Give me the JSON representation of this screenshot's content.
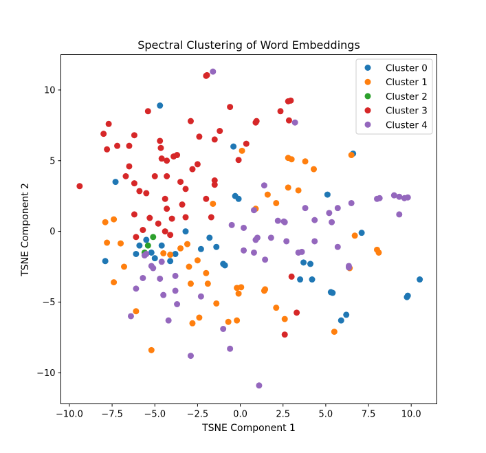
{
  "chart_data": {
    "type": "scatter",
    "title": "Spectral Clustering of Word Embeddings",
    "xlabel": "TSNE Component 1",
    "ylabel": "TSNE Component 2",
    "xlim": [
      -10.5,
      11.5
    ],
    "ylim": [
      -12.2,
      12.5
    ],
    "xticks": [
      -10.0,
      -7.5,
      -5.0,
      -2.5,
      0.0,
      2.5,
      5.0,
      7.5,
      10.0
    ],
    "xtick_labels": [
      "−10.0",
      "−7.5",
      "−5.0",
      "−2.5",
      "0.0",
      "2.5",
      "5.0",
      "7.5",
      "10.0"
    ],
    "yticks": [
      -10,
      -5,
      0,
      5,
      10
    ],
    "ytick_labels": [
      "−10",
      "−5",
      "0",
      "5",
      "10"
    ],
    "grid": false,
    "legend_position": "top-right",
    "series": [
      {
        "name": "Cluster 0",
        "color": "#1f77b4",
        "points": [
          [
            -4.7,
            8.9
          ],
          [
            -7.3,
            3.5
          ],
          [
            -0.4,
            6.0
          ],
          [
            -0.3,
            2.5
          ],
          [
            -0.1,
            2.3
          ],
          [
            6.6,
            5.5
          ],
          [
            5.1,
            2.6
          ],
          [
            7.1,
            -0.1
          ],
          [
            -3.2,
            0.0
          ],
          [
            -1.8,
            -0.45
          ],
          [
            -2.3,
            -1.25
          ],
          [
            -1.4,
            -1.1
          ],
          [
            -5.9,
            -1.0
          ],
          [
            -5.5,
            -0.6
          ],
          [
            -4.6,
            -1.0
          ],
          [
            -6.1,
            -1.6
          ],
          [
            -5.2,
            -1.5
          ],
          [
            -3.8,
            -1.6
          ],
          [
            -5.0,
            -1.9
          ],
          [
            -4.1,
            -2.1
          ],
          [
            -1.0,
            -2.3
          ],
          [
            -0.9,
            -2.4
          ],
          [
            -7.9,
            -2.1
          ],
          [
            3.7,
            -2.2
          ],
          [
            4.1,
            -2.3
          ],
          [
            3.5,
            -3.4
          ],
          [
            4.2,
            -3.4
          ],
          [
            5.3,
            -4.3
          ],
          [
            5.4,
            -4.35
          ],
          [
            9.8,
            -4.55
          ],
          [
            9.75,
            -4.65
          ],
          [
            10.5,
            -3.4
          ],
          [
            6.2,
            -5.9
          ],
          [
            5.9,
            -6.3
          ]
        ]
      },
      {
        "name": "Cluster 1",
        "color": "#ff7f0e",
        "points": [
          [
            -7.9,
            0.65
          ],
          [
            -7.4,
            0.85
          ],
          [
            -7.8,
            -0.8
          ],
          [
            -7.0,
            -0.85
          ],
          [
            -6.8,
            -2.5
          ],
          [
            -7.4,
            -3.6
          ],
          [
            -6.1,
            -5.65
          ],
          [
            -5.2,
            -8.4
          ],
          [
            -4.5,
            -1.55
          ],
          [
            -4.1,
            -1.65
          ],
          [
            -3.5,
            -1.2
          ],
          [
            -3.1,
            -0.9
          ],
          [
            -3.0,
            -2.5
          ],
          [
            -2.9,
            -3.7
          ],
          [
            -2.5,
            -2.05
          ],
          [
            -2.0,
            -2.95
          ],
          [
            -1.9,
            -3.7
          ],
          [
            -1.4,
            -5.1
          ],
          [
            -2.4,
            -6.1
          ],
          [
            -2.8,
            -6.5
          ],
          [
            -1.6,
            1.95
          ],
          [
            0.1,
            5.7
          ],
          [
            0.9,
            1.6
          ],
          [
            1.6,
            2.6
          ],
          [
            2.1,
            2.0
          ],
          [
            2.8,
            3.1
          ],
          [
            2.8,
            5.2
          ],
          [
            3.0,
            5.1
          ],
          [
            3.8,
            4.95
          ],
          [
            4.3,
            4.4
          ],
          [
            3.4,
            2.9
          ],
          [
            6.5,
            5.4
          ],
          [
            6.7,
            -0.3
          ],
          [
            6.4,
            -2.6
          ],
          [
            8.0,
            -1.3
          ],
          [
            8.1,
            -1.5
          ],
          [
            5.5,
            -7.1
          ],
          [
            -0.2,
            -4.0
          ],
          [
            0.05,
            -3.95
          ],
          [
            -0.1,
            -4.4
          ],
          [
            1.4,
            -4.2
          ],
          [
            1.45,
            -4.1
          ],
          [
            2.1,
            -5.4
          ],
          [
            2.6,
            -6.2
          ],
          [
            -0.7,
            -6.4
          ],
          [
            -0.2,
            -6.3
          ]
        ]
      },
      {
        "name": "Cluster 2",
        "color": "#2ca02c",
        "points": [
          [
            -5.1,
            -0.4
          ],
          [
            -5.4,
            -1.0
          ],
          [
            -5.6,
            -1.5
          ]
        ]
      },
      {
        "name": "Cluster 3",
        "color": "#d62728",
        "points": [
          [
            -9.4,
            3.2
          ],
          [
            -8.0,
            6.9
          ],
          [
            -7.7,
            7.6
          ],
          [
            -7.8,
            5.8
          ],
          [
            -7.2,
            6.05
          ],
          [
            -6.5,
            6.05
          ],
          [
            -6.2,
            6.8
          ],
          [
            -6.7,
            3.9
          ],
          [
            -6.5,
            4.6
          ],
          [
            -6.2,
            3.4
          ],
          [
            -5.9,
            2.85
          ],
          [
            -5.5,
            2.7
          ],
          [
            -5.4,
            8.5
          ],
          [
            -5.0,
            3.9
          ],
          [
            -4.7,
            6.4
          ],
          [
            -4.65,
            5.9
          ],
          [
            -4.6,
            5.15
          ],
          [
            -4.3,
            5.0
          ],
          [
            -3.9,
            5.3
          ],
          [
            -3.7,
            5.4
          ],
          [
            -3.5,
            3.5
          ],
          [
            -3.2,
            3.0
          ],
          [
            -4.3,
            3.9
          ],
          [
            -4.4,
            2.3
          ],
          [
            -4.3,
            1.6
          ],
          [
            -4.0,
            0.9
          ],
          [
            -3.4,
            1.9
          ],
          [
            -3.2,
            1.0
          ],
          [
            -2.9,
            7.8
          ],
          [
            -2.8,
            4.4
          ],
          [
            -2.5,
            4.75
          ],
          [
            -2.4,
            6.7
          ],
          [
            -2.0,
            2.3
          ],
          [
            -2.0,
            11.0
          ],
          [
            -1.95,
            11.05
          ],
          [
            -1.5,
            6.5
          ],
          [
            -1.2,
            7.1
          ],
          [
            -1.5,
            3.6
          ],
          [
            -1.5,
            3.3
          ],
          [
            -1.7,
            1.0
          ],
          [
            -0.6,
            8.8
          ],
          [
            -0.1,
            5.05
          ],
          [
            0.35,
            6.2
          ],
          [
            0.9,
            7.7
          ],
          [
            0.95,
            7.8
          ],
          [
            2.35,
            8.5
          ],
          [
            2.8,
            9.2
          ],
          [
            2.95,
            9.25
          ],
          [
            2.85,
            7.85
          ],
          [
            -6.2,
            1.2
          ],
          [
            -6.1,
            -0.4
          ],
          [
            -5.7,
            0.1
          ],
          [
            -5.3,
            0.95
          ],
          [
            -4.8,
            0.55
          ],
          [
            -4.4,
            0.0
          ],
          [
            -4.1,
            -0.25
          ],
          [
            3.0,
            -3.2
          ],
          [
            3.3,
            -5.75
          ],
          [
            2.6,
            -7.3
          ]
        ]
      },
      {
        "name": "Cluster 4",
        "color": "#9467bd",
        "points": [
          [
            -1.6,
            11.3
          ],
          [
            3.2,
            7.7
          ],
          [
            1.4,
            3.25
          ],
          [
            -0.5,
            0.45
          ],
          [
            0.2,
            0.25
          ],
          [
            0.8,
            1.5
          ],
          [
            0.9,
            -0.6
          ],
          [
            1.0,
            -0.45
          ],
          [
            1.8,
            -0.45
          ],
          [
            2.2,
            0.75
          ],
          [
            2.55,
            0.7
          ],
          [
            2.6,
            0.65
          ],
          [
            0.8,
            -1.5
          ],
          [
            1.45,
            -2.0
          ],
          [
            0.2,
            -1.35
          ],
          [
            2.7,
            -0.7
          ],
          [
            3.4,
            -1.5
          ],
          [
            3.6,
            -1.45
          ],
          [
            3.8,
            1.65
          ],
          [
            4.35,
            0.8
          ],
          [
            4.35,
            -0.7
          ],
          [
            5.2,
            1.3
          ],
          [
            5.35,
            0.65
          ],
          [
            5.7,
            1.65
          ],
          [
            5.7,
            -1.1
          ],
          [
            6.5,
            2.0
          ],
          [
            6.35,
            -2.45
          ],
          [
            6.35,
            -2.55
          ],
          [
            8.0,
            2.3
          ],
          [
            8.15,
            2.35
          ],
          [
            9.0,
            2.55
          ],
          [
            9.3,
            2.45
          ],
          [
            9.6,
            2.35
          ],
          [
            9.8,
            2.4
          ],
          [
            9.3,
            1.2
          ],
          [
            -5.6,
            -1.7
          ],
          [
            -5.5,
            -1.6
          ],
          [
            -5.2,
            -2.45
          ],
          [
            -5.1,
            -2.6
          ],
          [
            -4.6,
            -2.15
          ],
          [
            -5.7,
            -3.3
          ],
          [
            -4.7,
            -3.35
          ],
          [
            -3.8,
            -3.15
          ],
          [
            -6.1,
            -4.05
          ],
          [
            -4.5,
            -4.5
          ],
          [
            -3.8,
            -4.2
          ],
          [
            -3.7,
            -5.15
          ],
          [
            -2.3,
            -4.6
          ],
          [
            -6.4,
            -6.0
          ],
          [
            -4.2,
            -6.3
          ],
          [
            -2.9,
            -8.8
          ],
          [
            -1.0,
            -6.9
          ],
          [
            -0.6,
            -8.3
          ],
          [
            1.1,
            -10.9
          ]
        ]
      }
    ]
  }
}
